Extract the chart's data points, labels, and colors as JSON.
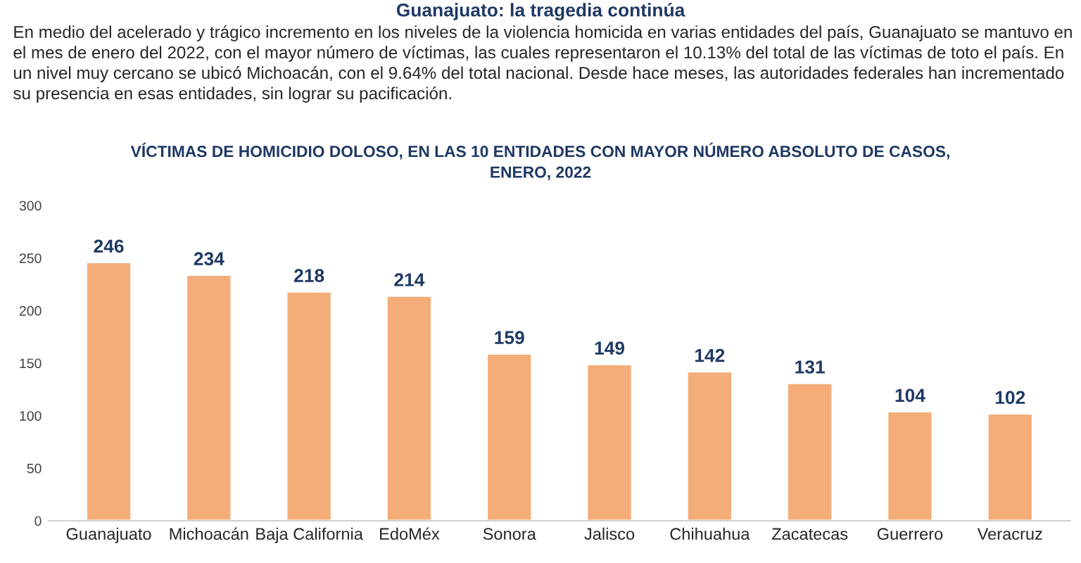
{
  "chart_data": {
    "type": "bar",
    "title": "Guanajuato: la tragedia continúa",
    "subtitle": "En medio del acelerado y trágico incremento en los niveles de la violencia homicida en varias entidades del país, Guanajuato se mantuvo en el mes de enero del 2022, con el mayor número de víctimas, las cuales representaron el 10.13% del total de las víctimas de toto el país. En un nivel muy cercano se ubicó Michoacán, con el 9.64% del total nacional. Desde hace meses, las autoridades federales han incrementado su presencia en esas entidades, sin lograr su pacificación.",
    "annotations": [
      "VÍCTIMAS DE HOMICIDIO DOLOSO, EN LAS 10 ENTIDADES CON MAYOR NÚMERO ABSOLUTO DE CASOS,\nENERO, 2022"
    ],
    "categories": [
      "Guanajuato",
      "Michoacán",
      "Baja California",
      "EdoMéx",
      "Sonora",
      "Jalisco",
      "Chihuahua",
      "Zacatecas",
      "Guerrero",
      "Veracruz"
    ],
    "values": [
      246,
      234,
      218,
      214,
      159,
      149,
      142,
      131,
      104,
      102
    ],
    "color": "#f4ad78",
    "ylim": [
      0,
      300
    ],
    "yticks": [
      0,
      50,
      100,
      150,
      200,
      250,
      300
    ],
    "data_labels": true,
    "grid": false
  }
}
